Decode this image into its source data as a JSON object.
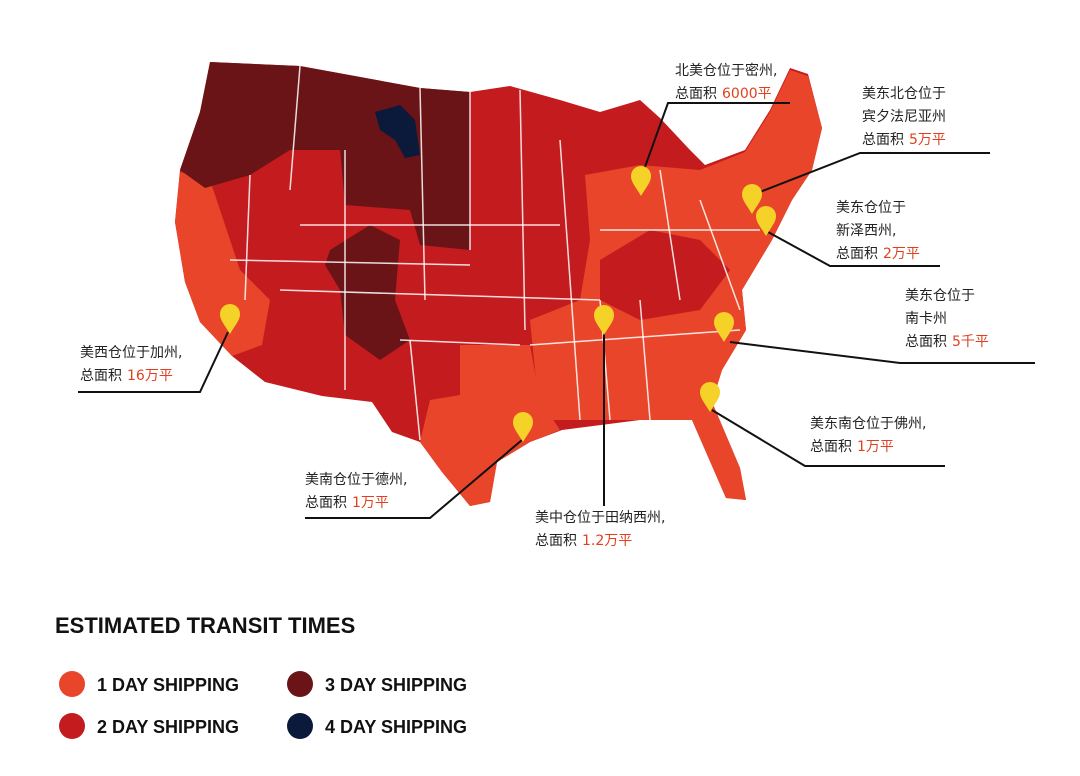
{
  "warehouses": [
    {
      "lines": [
        "北美仓位于密州,"
      ],
      "area_prefix": "总面积",
      "area": "6000平"
    },
    {
      "lines": [
        "美东北仓位于",
        "宾夕法尼亚州"
      ],
      "area_prefix": "总面积",
      "area": "5万平"
    },
    {
      "lines": [
        "美东仓位于",
        "新泽西州,"
      ],
      "area_prefix": "总面积",
      "area": "2万平"
    },
    {
      "lines": [
        "美东仓位于",
        "南卡州"
      ],
      "area_prefix": "总面积",
      "area": "5千平"
    },
    {
      "lines": [
        "美东南仓位于佛州,"
      ],
      "area_prefix": "总面积",
      "area": "1万平"
    },
    {
      "lines": [
        "美中仓位于田纳西州,"
      ],
      "area_prefix": "总面积",
      "area": "1.2万平"
    },
    {
      "lines": [
        "美南仓位于德州,"
      ],
      "area_prefix": "总面积",
      "area": "1万平"
    },
    {
      "lines": [
        "美西仓位于加州,"
      ],
      "area_prefix": "总面积",
      "area": "16万平"
    }
  ],
  "legend": {
    "title": "ESTIMATED TRANSIT TIMES",
    "items": [
      {
        "label": "1 DAY SHIPPING",
        "color": "#e8452a"
      },
      {
        "label": "2 DAY SHIPPING",
        "color": "#c41b1e"
      },
      {
        "label": "3 DAY SHIPPING",
        "color": "#6b1417"
      },
      {
        "label": "4 DAY SHIPPING",
        "color": "#0b1a3a"
      }
    ]
  }
}
